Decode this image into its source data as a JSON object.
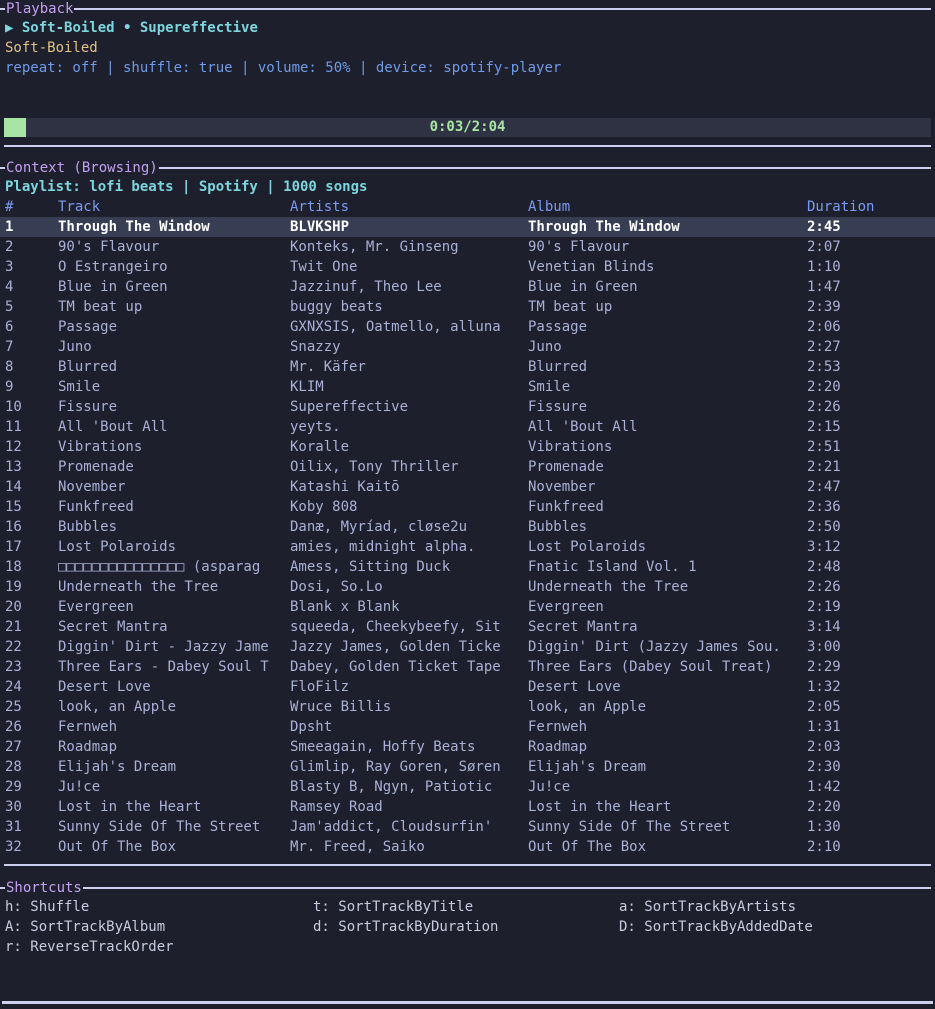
{
  "panels": {
    "playback_title": "Playback",
    "context_title": "Context (Browsing)",
    "shortcuts_title": "Shortcuts"
  },
  "playback": {
    "play_icon": "▶",
    "now_playing": "Soft-Boiled • Supereffective",
    "album": "Soft-Boiled",
    "status": "repeat: off | shuffle: true | volume: 50% | device: spotify-player",
    "progress": {
      "label": "0:03/2:04",
      "elapsed": "0:03",
      "total": "2:04",
      "percent": 2.4
    }
  },
  "context": {
    "summary": "Playlist: lofi beats | Spotify | 1000 songs",
    "columns": [
      "#",
      "Track",
      "Artists",
      "Album",
      "Duration"
    ],
    "selected_index": 0,
    "tracks": [
      [
        "1",
        "Through The Window",
        "BLVKSHP",
        "Through The Window",
        "2:45"
      ],
      [
        "2",
        "90's Flavour",
        "Konteks, Mr. Ginseng",
        "90's Flavour",
        "2:07"
      ],
      [
        "3",
        "O Estrangeiro",
        "Twit One",
        "Venetian Blinds",
        "1:10"
      ],
      [
        "4",
        "Blue in Green",
        "Jazzinuf, Theo Lee",
        "Blue in Green",
        "1:47"
      ],
      [
        "5",
        "TM beat up",
        "buggy beats",
        "TM beat up",
        "2:39"
      ],
      [
        "6",
        "Passage",
        "GXNXSIS, Oatmello, alluna",
        "Passage",
        "2:06"
      ],
      [
        "7",
        "Juno",
        "Snazzy",
        "Juno",
        "2:27"
      ],
      [
        "8",
        "Blurred",
        "Mr. Käfer",
        "Blurred",
        "2:53"
      ],
      [
        "9",
        "Smile",
        "KLIM",
        "Smile",
        "2:20"
      ],
      [
        "10",
        "Fissure",
        "Supereffective",
        "Fissure",
        "2:26"
      ],
      [
        "11",
        "All 'Bout All",
        "yeyts.",
        "All 'Bout All",
        "2:15"
      ],
      [
        "12",
        "Vibrations",
        "Koralle",
        "Vibrations",
        "2:51"
      ],
      [
        "13",
        "Promenade",
        "Oilix, Tony Thriller",
        "Promenade",
        "2:21"
      ],
      [
        "14",
        "November",
        "Katashi Kaitō",
        "November",
        "2:47"
      ],
      [
        "15",
        "Funkfreed",
        "Koby 808",
        "Funkfreed",
        "2:36"
      ],
      [
        "16",
        "Bubbles",
        "Danæ, Myríad, cløse2u",
        "Bubbles",
        "2:50"
      ],
      [
        "17",
        "Lost Polaroids",
        "amies, midnight alpha.",
        "Lost Polaroids",
        "3:12"
      ],
      [
        "18",
        "□□□□□□□□□□□□□□□ (asparag",
        "Amess, Sitting Duck",
        "Fnatic Island Vol. 1",
        "2:48"
      ],
      [
        "19",
        "Underneath the Tree",
        "Dosi, So.Lo",
        "Underneath the Tree",
        "2:26"
      ],
      [
        "20",
        "Evergreen",
        "Blank x Blank",
        "Evergreen",
        "2:19"
      ],
      [
        "21",
        "Secret Mantra",
        "squeeda, Cheekybeefy, Sit",
        "Secret Mantra",
        "3:14"
      ],
      [
        "22",
        "Diggin' Dirt - Jazzy Jame",
        "Jazzy James, Golden Ticke",
        "Diggin' Dirt (Jazzy James Sou.",
        "3:00"
      ],
      [
        "23",
        "Three Ears - Dabey Soul T",
        "Dabey, Golden Ticket Tape",
        "Three Ears (Dabey Soul Treat)",
        "2:29"
      ],
      [
        "24",
        "Desert Love",
        "FloFilz",
        "Desert Love",
        "1:32"
      ],
      [
        "25",
        "look, an Apple",
        "Wruce Billis",
        "look, an Apple",
        "2:05"
      ],
      [
        "26",
        "Fernweh",
        "Dpsht",
        "Fernweh",
        "1:31"
      ],
      [
        "27",
        "Roadmap",
        "Smeeagain, Hoffy Beats",
        "Roadmap",
        "2:03"
      ],
      [
        "28",
        "Elijah's Dream",
        "Glimlip, Ray Goren, Søren",
        "Elijah's Dream",
        "2:30"
      ],
      [
        "29",
        "Ju!ce",
        "Blasty B, Ngyn, Patiotic",
        "Ju!ce",
        "1:42"
      ],
      [
        "30",
        "Lost in the Heart",
        "Ramsey Road",
        "Lost in the Heart",
        "2:20"
      ],
      [
        "31",
        "Sunny Side Of The Street",
        "Jam'addict, Cloudsurfin'",
        "Sunny Side Of The Street",
        "1:30"
      ],
      [
        "32",
        "Out Of The Box",
        "Mr. Freed, Saiko",
        "Out Of The Box",
        "2:10"
      ]
    ]
  },
  "shortcuts": {
    "rows": [
      [
        "h: Shuffle",
        "t: SortTrackByTitle",
        "a: SortTrackByArtists"
      ],
      [
        "A: SortTrackByAlbum",
        "d: SortTrackByDuration",
        "D: SortTrackByAddedDate"
      ],
      [
        "r: ReverseTrackOrder"
      ]
    ]
  },
  "colors": {
    "background": "#1e1f2c",
    "panel_border": "#ccd0ee",
    "panel_title": "#c3a1f0",
    "accent_cyan": "#7dd6de",
    "accent_yellow": "#e2c287",
    "status_blue": "#6f9be8",
    "table_header_blue": "#7a9bf0",
    "progress_green": "#a8e5a5",
    "row_text": "#a9b1d6",
    "selected_row_bg": "#373d52"
  }
}
